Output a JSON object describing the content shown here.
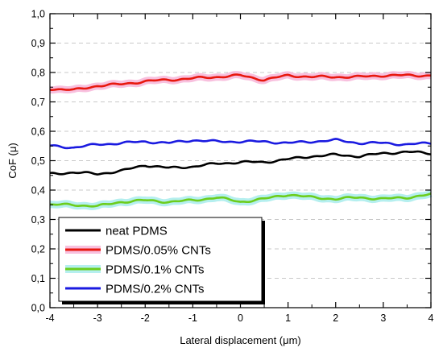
{
  "chart_data": {
    "type": "line",
    "title": "",
    "xlabel": "Lateral displacement (μm)",
    "ylabel": "CoF (μ)",
    "xlim": [
      -4,
      4
    ],
    "ylim": [
      0,
      1
    ],
    "x_ticks": [
      "-4",
      "-3",
      "-2",
      "-1",
      "0",
      "1",
      "2",
      "3",
      "4"
    ],
    "y_ticks": [
      "0,0",
      "0,1",
      "0,2",
      "0,3",
      "0,4",
      "0,5",
      "0,6",
      "0,7",
      "0,8",
      "0,9",
      "1,0"
    ],
    "grid": "horizontal dashed",
    "legend_position": "bottom-left",
    "x": [
      -4.0,
      -3.5,
      -3.0,
      -2.5,
      -2.0,
      -1.5,
      -1.0,
      -0.5,
      0.0,
      0.5,
      1.0,
      1.5,
      2.0,
      2.5,
      3.0,
      3.5,
      4.0
    ],
    "series": [
      {
        "name": "neat PDMS",
        "color": "#000000",
        "band_color": "",
        "values": [
          0.455,
          0.46,
          0.455,
          0.465,
          0.485,
          0.475,
          0.48,
          0.49,
          0.495,
          0.495,
          0.505,
          0.515,
          0.52,
          0.515,
          0.525,
          0.53,
          0.525
        ]
      },
      {
        "name": "PDMS/0.05% CNTs",
        "color": "#e8180f",
        "band_color": "#f7b5d8",
        "values": [
          0.745,
          0.74,
          0.755,
          0.76,
          0.77,
          0.775,
          0.78,
          0.785,
          0.79,
          0.775,
          0.79,
          0.785,
          0.785,
          0.785,
          0.79,
          0.79,
          0.79
        ]
      },
      {
        "name": "PDMS/0.1% CNTs",
        "color": "#6ccd1c",
        "band_color": "#a8ecec",
        "values": [
          0.35,
          0.35,
          0.345,
          0.36,
          0.365,
          0.36,
          0.365,
          0.375,
          0.36,
          0.37,
          0.385,
          0.375,
          0.37,
          0.375,
          0.37,
          0.375,
          0.385
        ]
      },
      {
        "name": "PDMS/0.2% CNTs",
        "color": "#1a1ae0",
        "band_color": "",
        "values": [
          0.55,
          0.545,
          0.555,
          0.56,
          0.565,
          0.56,
          0.57,
          0.565,
          0.565,
          0.565,
          0.56,
          0.565,
          0.57,
          0.56,
          0.56,
          0.555,
          0.56
        ]
      }
    ]
  }
}
